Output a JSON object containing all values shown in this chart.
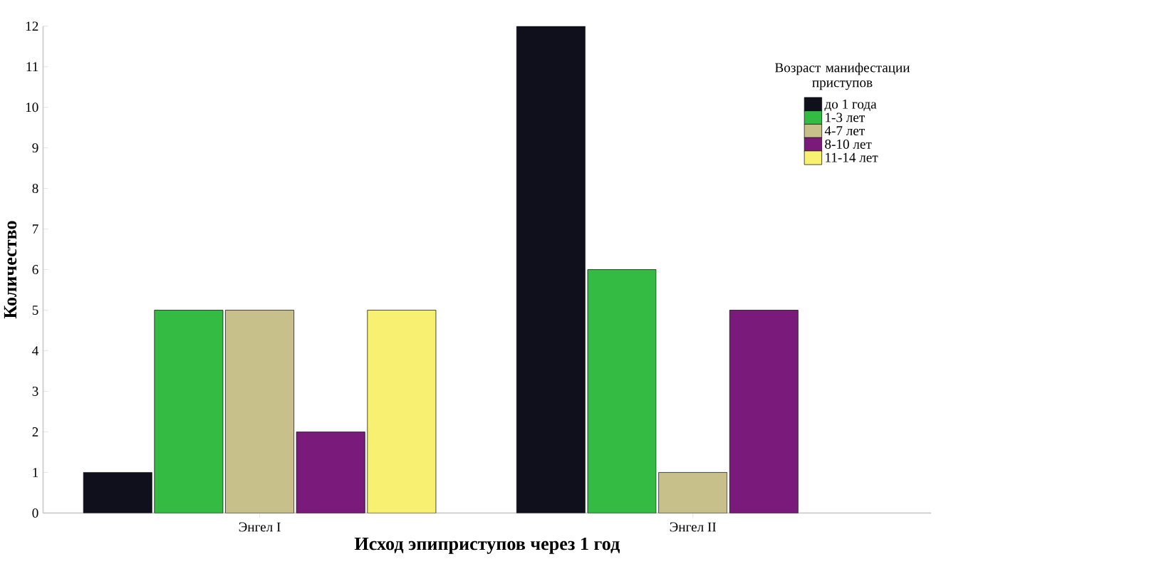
{
  "chart_data": {
    "type": "bar",
    "xlabel": "Исход эпиприступов через 1 год",
    "ylabel": "Количество",
    "legend_title": "Возраст манифестации приступов",
    "categories": [
      "Энгел I",
      "Энгел II"
    ],
    "series": [
      {
        "name": "до 1 года",
        "color": "#10101c",
        "values": [
          1,
          12
        ]
      },
      {
        "name": "1-3 лет",
        "color": "#33bb44",
        "values": [
          5,
          6
        ]
      },
      {
        "name": "4-7 лет",
        "color": "#c8c08a",
        "values": [
          5,
          1
        ]
      },
      {
        "name": "8-10 лет",
        "color": "#7a1a7a",
        "values": [
          2,
          5
        ]
      },
      {
        "name": "11-14 лет",
        "color": "#f8f070",
        "values": [
          5,
          null
        ]
      }
    ],
    "ylim": [
      0,
      12
    ],
    "yticks": [
      0,
      1,
      2,
      3,
      4,
      5,
      6,
      7,
      8,
      9,
      10,
      11,
      12
    ],
    "grid": false,
    "legend": "top right"
  }
}
